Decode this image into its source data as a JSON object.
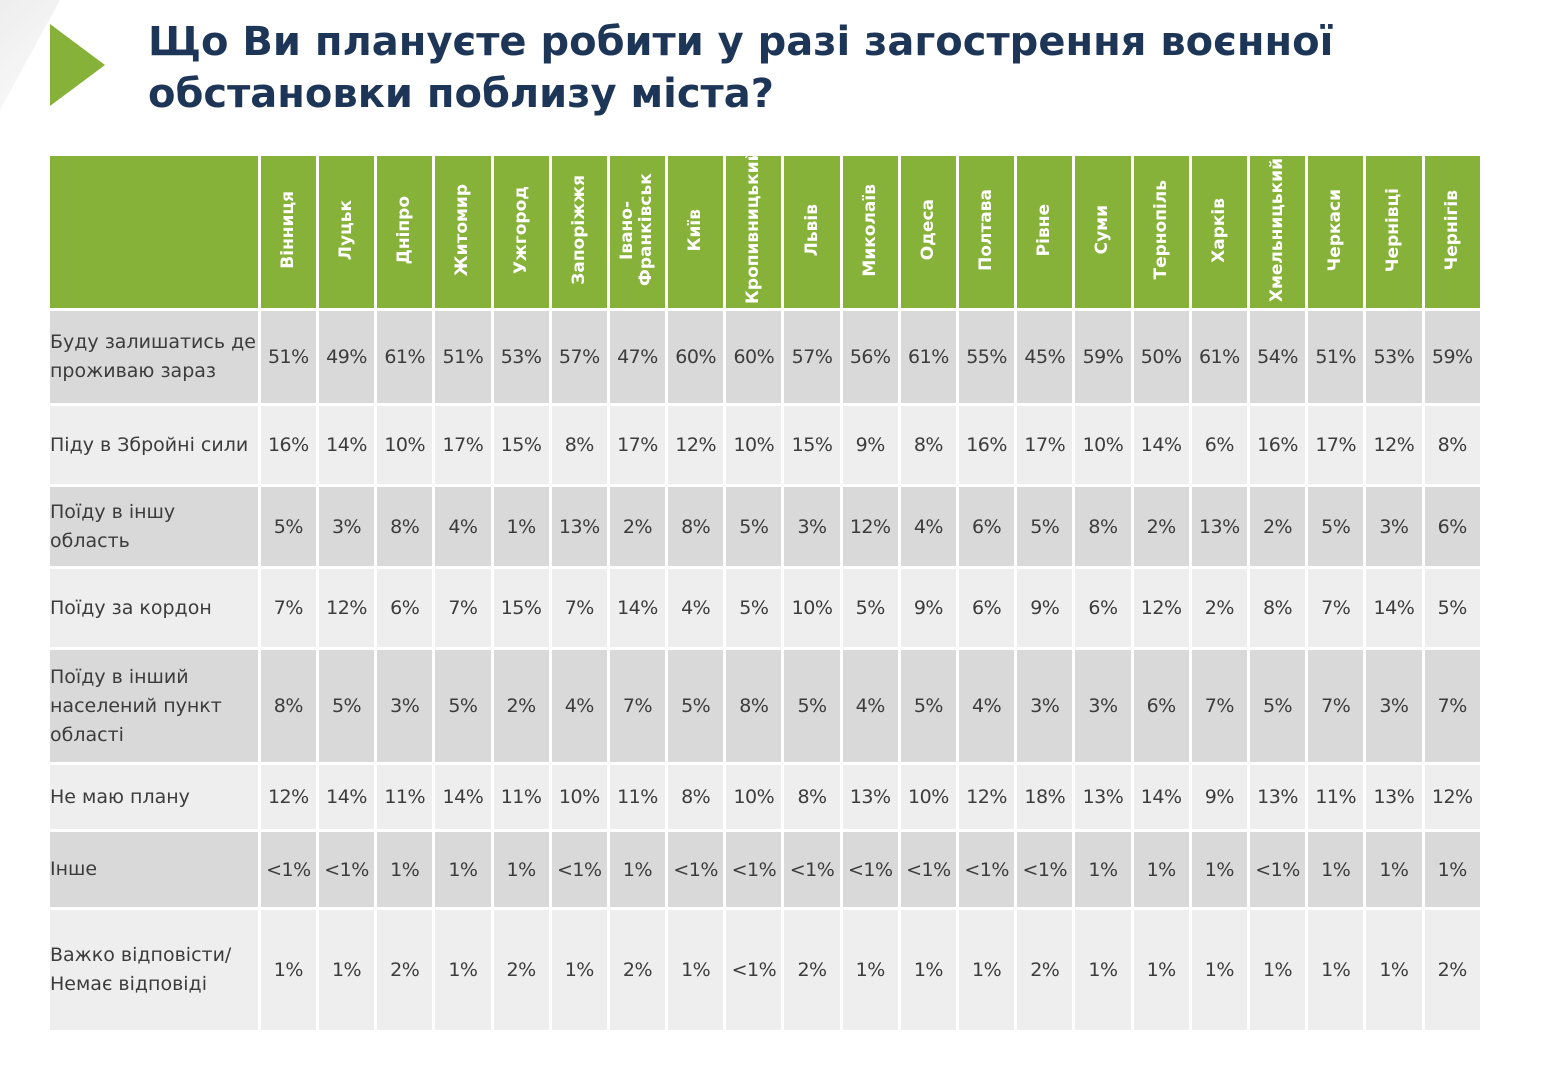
{
  "page": {
    "title": "Що Ви плануєте робити у разі загострення воєнної обстановки поблизу міста?"
  },
  "colors": {
    "header_green": "#86b23a",
    "title_navy": "#1d3557",
    "row_dark": "#d9d9d9",
    "row_light": "#eeeeee"
  },
  "chart_data": {
    "type": "table",
    "title": "Що Ви плануєте робити у разі загострення воєнної обстановки поблизу міста?",
    "columns": [
      "Вінниця",
      "Луцьк",
      "Дніпро",
      "Житомир",
      "Ужгород",
      "Запоріжжя",
      "Івано-Франківськ",
      "Київ",
      "Кропивницький",
      "Львів",
      "Миколаїв",
      "Одеса",
      "Полтава",
      "Рівне",
      "Суми",
      "Тернопіль",
      "Харків",
      "Хмельницький",
      "Черкаси",
      "Чернівці",
      "Чернігів"
    ],
    "rows": [
      {
        "label": "Буду залишатись де проживаю зараз",
        "height": 92,
        "values": [
          "51%",
          "49%",
          "61%",
          "51%",
          "53%",
          "57%",
          "47%",
          "60%",
          "60%",
          "57%",
          "56%",
          "61%",
          "55%",
          "45%",
          "59%",
          "50%",
          "61%",
          "54%",
          "51%",
          "53%",
          "59%"
        ]
      },
      {
        "label": "Піду в Збройні сили",
        "height": 78,
        "values": [
          "16%",
          "14%",
          "10%",
          "17%",
          "15%",
          "8%",
          "17%",
          "12%",
          "10%",
          "15%",
          "9%",
          "8%",
          "16%",
          "17%",
          "10%",
          "14%",
          "6%",
          "16%",
          "17%",
          "12%",
          "8%"
        ]
      },
      {
        "label": "Поїду в іншу область",
        "height": 79,
        "values": [
          "5%",
          "3%",
          "8%",
          "4%",
          "1%",
          "13%",
          "2%",
          "8%",
          "5%",
          "3%",
          "12%",
          "4%",
          "6%",
          "5%",
          "8%",
          "2%",
          "13%",
          "2%",
          "5%",
          "3%",
          "6%"
        ]
      },
      {
        "label": "Поїду за кордон",
        "height": 78,
        "values": [
          "7%",
          "12%",
          "6%",
          "7%",
          "15%",
          "7%",
          "14%",
          "4%",
          "5%",
          "10%",
          "5%",
          "9%",
          "6%",
          "9%",
          "6%",
          "12%",
          "2%",
          "8%",
          "7%",
          "14%",
          "5%"
        ]
      },
      {
        "label": "Поїду в інший населений пункт області",
        "height": 112,
        "values": [
          "8%",
          "5%",
          "3%",
          "5%",
          "2%",
          "4%",
          "7%",
          "5%",
          "8%",
          "5%",
          "4%",
          "5%",
          "4%",
          "3%",
          "3%",
          "6%",
          "7%",
          "5%",
          "7%",
          "3%",
          "7%"
        ]
      },
      {
        "label": "Не маю плану",
        "height": 64,
        "values": [
          "12%",
          "14%",
          "11%",
          "14%",
          "11%",
          "10%",
          "11%",
          "8%",
          "10%",
          "8%",
          "13%",
          "10%",
          "12%",
          "18%",
          "13%",
          "14%",
          "9%",
          "13%",
          "11%",
          "13%",
          "12%"
        ]
      },
      {
        "label": "Інше",
        "height": 75,
        "values": [
          "<1%",
          "<1%",
          "1%",
          "1%",
          "1%",
          "<1%",
          "1%",
          "<1%",
          "<1%",
          "<1%",
          "<1%",
          "<1%",
          "<1%",
          "<1%",
          "1%",
          "1%",
          "1%",
          "<1%",
          "1%",
          "1%",
          "1%"
        ]
      },
      {
        "label": "Важко відповісти/Немає відповіді",
        "height": 120,
        "values": [
          "1%",
          "1%",
          "2%",
          "1%",
          "2%",
          "1%",
          "2%",
          "1%",
          "<1%",
          "2%",
          "1%",
          "1%",
          "1%",
          "2%",
          "1%",
          "1%",
          "1%",
          "1%",
          "1%",
          "1%",
          "2%"
        ]
      }
    ]
  }
}
